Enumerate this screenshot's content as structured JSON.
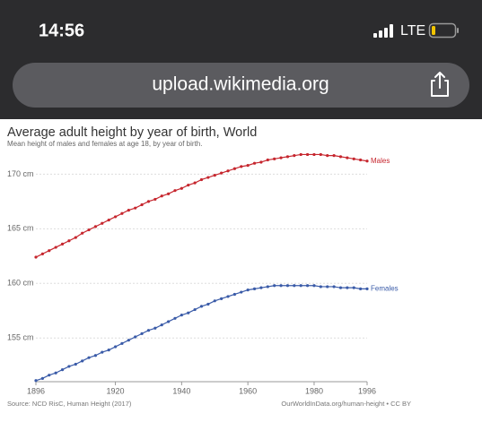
{
  "status_bar": {
    "time": "14:56",
    "network": "LTE"
  },
  "address_bar": {
    "url": "upload.wikimedia.org"
  },
  "chart_data": {
    "type": "line",
    "title": "Average adult height by year of birth, World",
    "subtitle": "Mean height of males and females at age 18, by year of birth.",
    "source": "Source: NCD RisC, Human Height (2017)",
    "credit": "OurWorldInData.org/human-height • CC BY",
    "x": [
      1896,
      1898,
      1900,
      1902,
      1904,
      1906,
      1908,
      1910,
      1912,
      1914,
      1916,
      1918,
      1920,
      1922,
      1924,
      1926,
      1928,
      1930,
      1932,
      1934,
      1936,
      1938,
      1940,
      1942,
      1944,
      1946,
      1948,
      1950,
      1952,
      1954,
      1956,
      1958,
      1960,
      1962,
      1964,
      1966,
      1968,
      1970,
      1972,
      1974,
      1976,
      1978,
      1980,
      1982,
      1984,
      1986,
      1988,
      1990,
      1992,
      1994,
      1996
    ],
    "series": [
      {
        "name": "Males",
        "color": "#c6262e",
        "values": [
          162.4,
          162.7,
          163.0,
          163.3,
          163.6,
          163.9,
          164.2,
          164.6,
          164.9,
          165.2,
          165.5,
          165.8,
          166.1,
          166.4,
          166.7,
          166.9,
          167.2,
          167.5,
          167.7,
          168.0,
          168.2,
          168.5,
          168.7,
          169.0,
          169.2,
          169.5,
          169.7,
          169.9,
          170.1,
          170.3,
          170.5,
          170.7,
          170.8,
          171.0,
          171.1,
          171.3,
          171.4,
          171.5,
          171.6,
          171.7,
          171.8,
          171.8,
          171.8,
          171.8,
          171.7,
          171.7,
          171.6,
          171.5,
          171.4,
          171.3,
          171.2
        ]
      },
      {
        "name": "Females",
        "color": "#3a5ba8",
        "values": [
          151.1,
          151.3,
          151.6,
          151.8,
          152.1,
          152.4,
          152.6,
          152.9,
          153.2,
          153.4,
          153.7,
          153.9,
          154.2,
          154.5,
          154.8,
          155.1,
          155.4,
          155.7,
          155.9,
          156.2,
          156.5,
          156.8,
          157.1,
          157.3,
          157.6,
          157.9,
          158.1,
          158.4,
          158.6,
          158.8,
          159.0,
          159.2,
          159.4,
          159.5,
          159.6,
          159.7,
          159.8,
          159.8,
          159.8,
          159.8,
          159.8,
          159.8,
          159.8,
          159.7,
          159.7,
          159.7,
          159.6,
          159.6,
          159.6,
          159.5,
          159.5
        ]
      }
    ],
    "xlim": [
      1896,
      1996
    ],
    "xticks": [
      1896,
      1920,
      1940,
      1960,
      1980,
      1996
    ],
    "ylim": [
      151,
      172
    ],
    "yticks": [
      {
        "value": 155,
        "label": "155 cm"
      },
      {
        "value": 160,
        "label": "160 cm"
      },
      {
        "value": 165,
        "label": "165 cm"
      },
      {
        "value": 170,
        "label": "170 cm"
      }
    ],
    "grid": true
  }
}
